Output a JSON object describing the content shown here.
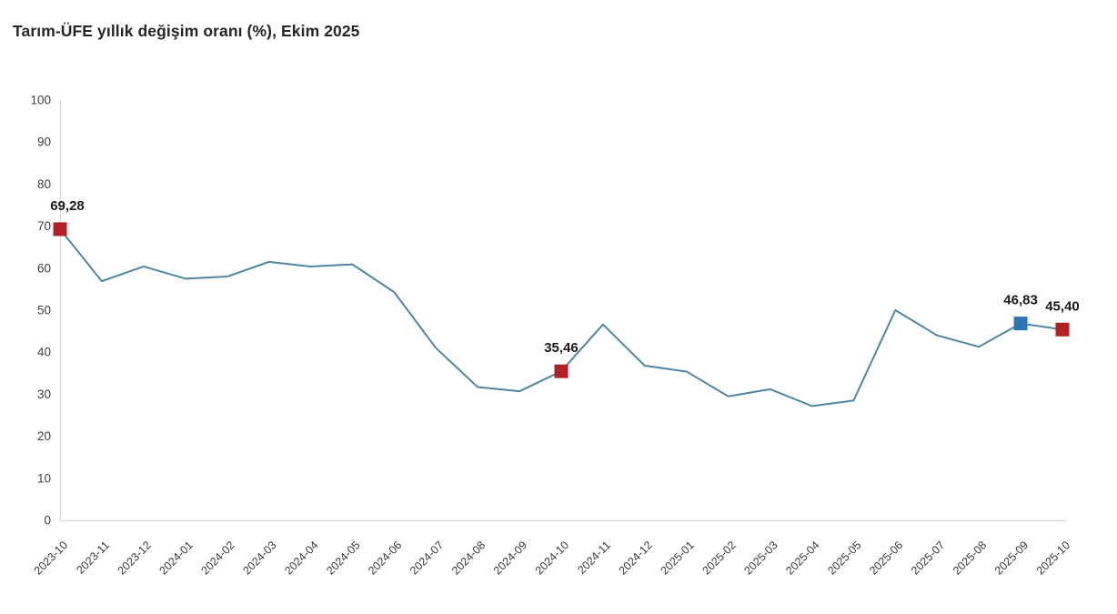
{
  "chart_data": {
    "type": "line",
    "title": "Tarım-ÜFE yıllık değişim oranı (%), Ekim 2025",
    "x": [
      "2023-10",
      "2023-11",
      "2023-12",
      "2024-01",
      "2024-02",
      "2024-03",
      "2024-04",
      "2024-05",
      "2024-06",
      "2024-07",
      "2024-08",
      "2024-09",
      "2024-10",
      "2024-11",
      "2024-12",
      "2025-01",
      "2025-02",
      "2025-03",
      "2025-04",
      "2025-05",
      "2025-06",
      "2025-07",
      "2025-08",
      "2025-09",
      "2025-10"
    ],
    "series": [
      {
        "name": "Tarım-ÜFE yıllık değişim oranı (%)",
        "values": [
          69.28,
          56.9,
          60.4,
          57.5,
          58.0,
          61.5,
          60.4,
          60.9,
          54.3,
          41.0,
          31.7,
          30.7,
          35.46,
          46.6,
          36.8,
          35.4,
          29.5,
          31.2,
          27.2,
          28.5,
          50.0,
          44.0,
          41.3,
          46.83,
          45.4
        ]
      }
    ],
    "ylim": [
      0,
      100
    ],
    "ytick_step": 10,
    "ytick_labels": [
      "0",
      "10",
      "20",
      "30",
      "40",
      "50",
      "60",
      "70",
      "80",
      "90",
      "100"
    ],
    "grid": false,
    "legend": "none",
    "annotated_points": [
      {
        "month": "2023-10",
        "value": 69.28,
        "label": "69,28",
        "marker": "red"
      },
      {
        "month": "2024-10",
        "value": 35.46,
        "label": "35,46",
        "marker": "red"
      },
      {
        "month": "2025-09",
        "value": 46.83,
        "label": "46,83",
        "marker": "blue"
      },
      {
        "month": "2025-10",
        "value": 45.4,
        "label": "45,40",
        "marker": "red"
      }
    ],
    "colors": {
      "line": "#4e87a3",
      "marker_red": "#b21f24",
      "marker_blue": "#2e75b6",
      "axis_line": "#d9d9d9",
      "tick_text": "#3f3f3f",
      "title_text": "#262626",
      "point_label_text": "#1a1a1a",
      "background": "#ffffff"
    }
  }
}
